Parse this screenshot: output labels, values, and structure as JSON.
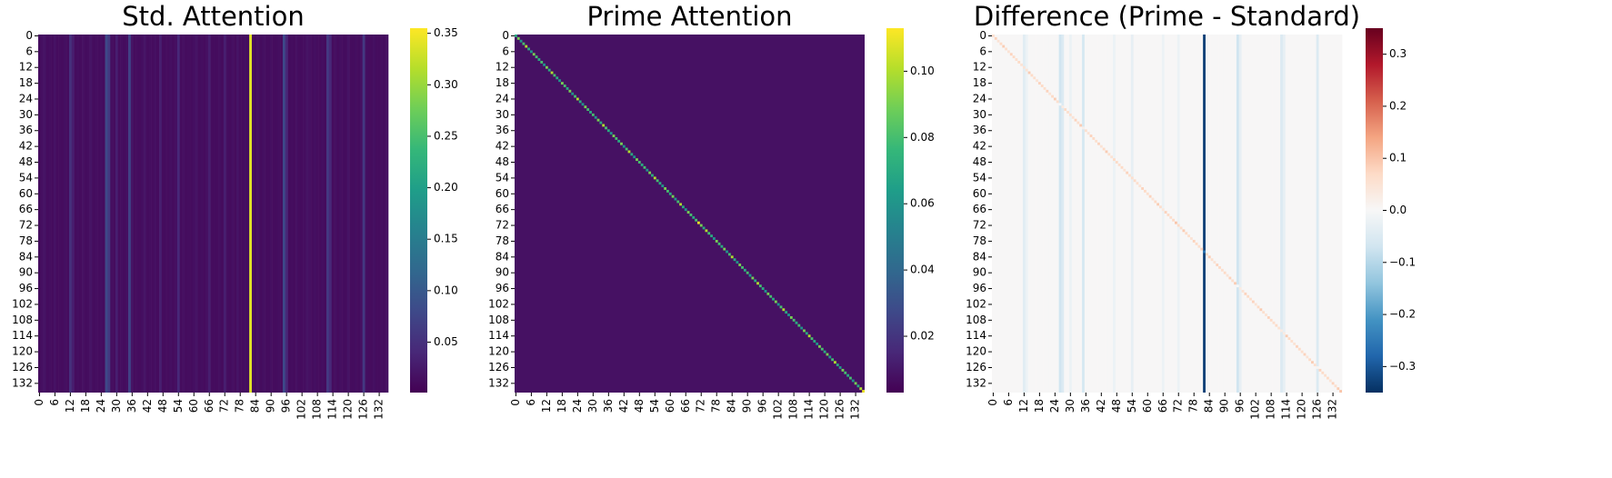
{
  "chart_data": [
    {
      "type": "heatmap",
      "title": "Std. Attention",
      "xticks": [
        0,
        6,
        12,
        18,
        24,
        30,
        36,
        42,
        48,
        54,
        60,
        66,
        72,
        78,
        84,
        90,
        96,
        102,
        108,
        114,
        120,
        126,
        132
      ],
      "yticks": [
        0,
        6,
        12,
        18,
        24,
        30,
        36,
        42,
        48,
        54,
        60,
        66,
        72,
        78,
        84,
        90,
        96,
        102,
        108,
        114,
        120,
        126,
        132
      ],
      "column_values": [
        0.012,
        0.015,
        0.02,
        0.012,
        0.014,
        0.012,
        0.018,
        0.012,
        0.013,
        0.012,
        0.015,
        0.012,
        0.05,
        0.03,
        0.012,
        0.014,
        0.012,
        0.016,
        0.012,
        0.013,
        0.02,
        0.012,
        0.014,
        0.012,
        0.015,
        0.012,
        0.08,
        0.06,
        0.014,
        0.012,
        0.03,
        0.012,
        0.014,
        0.012,
        0.015,
        0.07,
        0.02,
        0.012,
        0.013,
        0.012,
        0.015,
        0.02,
        0.012,
        0.014,
        0.012,
        0.016,
        0.012,
        0.03,
        0.012,
        0.013,
        0.012,
        0.015,
        0.012,
        0.014,
        0.04,
        0.012,
        0.016,
        0.012,
        0.013,
        0.012,
        0.015,
        0.02,
        0.012,
        0.014,
        0.012,
        0.016,
        0.03,
        0.012,
        0.013,
        0.012,
        0.015,
        0.012,
        0.03,
        0.014,
        0.012,
        0.016,
        0.012,
        0.02,
        0.013,
        0.012,
        0.015,
        0.012,
        0.34,
        0.014,
        0.012,
        0.016,
        0.012,
        0.015,
        0.013,
        0.012,
        0.015,
        0.012,
        0.012,
        0.014,
        0.012,
        0.08,
        0.04,
        0.012,
        0.013,
        0.012,
        0.015,
        0.012,
        0.012,
        0.014,
        0.02,
        0.016,
        0.012,
        0.015,
        0.013,
        0.012,
        0.015,
        0.012,
        0.06,
        0.04,
        0.012,
        0.016,
        0.012,
        0.015,
        0.013,
        0.012,
        0.02,
        0.012,
        0.012,
        0.014,
        0.012,
        0.016,
        0.06,
        0.015,
        0.013,
        0.012,
        0.015,
        0.012,
        0.012,
        0.014,
        0.012,
        0.016
      ],
      "clim": [
        0.001,
        0.355
      ],
      "cticks": [
        0.05,
        {
          "value": 0.1,
          "label": "0.10"
        },
        0.15,
        {
          "value": 0.2,
          "label": "0.20"
        },
        0.25,
        {
          "value": 0.3,
          "label": "0.30"
        },
        0.35
      ],
      "colormap": [
        "#440154",
        "#482878",
        "#3e4989",
        "#31688e",
        "#26828e",
        "#1f9e89",
        "#35b779",
        "#6ece58",
        "#b5de2b",
        "#fde725"
      ]
    },
    {
      "type": "heatmap",
      "title": "Prime Attention",
      "xticks": [
        0,
        6,
        12,
        18,
        24,
        30,
        36,
        42,
        48,
        54,
        60,
        66,
        72,
        78,
        84,
        90,
        96,
        102,
        108,
        114,
        120,
        126,
        132
      ],
      "yticks": [
        0,
        6,
        12,
        18,
        24,
        30,
        36,
        42,
        48,
        54,
        60,
        66,
        72,
        78,
        84,
        90,
        96,
        102,
        108,
        114,
        120,
        126,
        132
      ],
      "background": 0.008,
      "diagonal_values": [
        0.07,
        0.09,
        0.06,
        0.08,
        0.1,
        0.07,
        0.06,
        0.09,
        0.08,
        0.07,
        0.08,
        0.06,
        0.09,
        0.07,
        0.1,
        0.08,
        0.07,
        0.06,
        0.09,
        0.08,
        0.07,
        0.09,
        0.06,
        0.08,
        0.1,
        0.07,
        0.06,
        0.09,
        0.08,
        0.07,
        0.08,
        0.06,
        0.09,
        0.07,
        0.1,
        0.08,
        0.07,
        0.06,
        0.09,
        0.08,
        0.07,
        0.09,
        0.06,
        0.08,
        0.1,
        0.07,
        0.06,
        0.09,
        0.08,
        0.07,
        0.08,
        0.06,
        0.09,
        0.07,
        0.1,
        0.08,
        0.07,
        0.06,
        0.09,
        0.08,
        0.07,
        0.09,
        0.06,
        0.08,
        0.1,
        0.07,
        0.06,
        0.09,
        0.08,
        0.07,
        0.08,
        0.11,
        0.09,
        0.07,
        0.1,
        0.08,
        0.07,
        0.06,
        0.09,
        0.08,
        0.07,
        0.09,
        0.06,
        0.08,
        0.1,
        0.07,
        0.06,
        0.09,
        0.08,
        0.07,
        0.08,
        0.06,
        0.09,
        0.07,
        0.1,
        0.08,
        0.07,
        0.06,
        0.09,
        0.08,
        0.07,
        0.09,
        0.06,
        0.08,
        0.1,
        0.07,
        0.06,
        0.09,
        0.08,
        0.07,
        0.08,
        0.06,
        0.09,
        0.07,
        0.1,
        0.08,
        0.07,
        0.06,
        0.09,
        0.08,
        0.07,
        0.09,
        0.06,
        0.08,
        0.1,
        0.07,
        0.06,
        0.09,
        0.08,
        0.07,
        0.08,
        0.06,
        0.09,
        0.07,
        0.1,
        0.11
      ],
      "clim": [
        0.003,
        0.113
      ],
      "cticks": [
        0.02,
        0.04,
        0.06,
        0.08,
        {
          "value": 0.1,
          "label": "0.10"
        }
      ],
      "colormap": [
        "#440154",
        "#482878",
        "#3e4989",
        "#31688e",
        "#26828e",
        "#1f9e89",
        "#35b779",
        "#6ece58",
        "#b5de2b",
        "#fde725"
      ]
    },
    {
      "type": "heatmap",
      "title": "Difference (Prime - Standard)",
      "xticks": [
        0,
        6,
        12,
        18,
        24,
        30,
        36,
        42,
        48,
        54,
        60,
        66,
        72,
        78,
        84,
        90,
        96,
        102,
        108,
        114,
        120,
        126,
        132
      ],
      "yticks": [
        0,
        6,
        12,
        18,
        24,
        30,
        36,
        42,
        48,
        54,
        60,
        66,
        72,
        78,
        84,
        90,
        96,
        102,
        108,
        114,
        120,
        126,
        132
      ],
      "column_values": [
        0.002,
        0.002,
        0.002,
        0.002,
        0.002,
        0.002,
        0.002,
        0.002,
        0.002,
        0.002,
        0.002,
        0.002,
        -0.04,
        -0.02,
        0.002,
        0.002,
        0.002,
        0.002,
        0.002,
        0.002,
        0.002,
        0.002,
        0.002,
        0.002,
        0.002,
        0.002,
        -0.07,
        -0.05,
        0.002,
        0.002,
        -0.02,
        0.002,
        0.002,
        0.002,
        0.002,
        -0.06,
        0.002,
        0.002,
        0.002,
        0.002,
        0.002,
        0.002,
        0.002,
        0.002,
        0.002,
        0.002,
        0.002,
        -0.02,
        0.002,
        0.002,
        0.002,
        0.002,
        0.002,
        0.002,
        -0.03,
        0.002,
        0.002,
        0.002,
        0.002,
        0.002,
        0.002,
        0.002,
        0.002,
        0.002,
        0.002,
        0.002,
        -0.02,
        0.002,
        0.002,
        0.002,
        0.002,
        0.002,
        -0.02,
        0.002,
        0.002,
        0.002,
        0.002,
        0.002,
        0.002,
        0.002,
        0.002,
        0.002,
        -0.33,
        0.002,
        0.002,
        0.002,
        0.002,
        0.002,
        0.002,
        0.002,
        0.002,
        0.002,
        0.002,
        0.002,
        0.002,
        -0.07,
        -0.03,
        0.002,
        0.002,
        0.002,
        0.002,
        0.002,
        0.002,
        0.002,
        0.002,
        0.002,
        0.002,
        0.002,
        0.002,
        0.002,
        0.002,
        0.002,
        -0.05,
        -0.03,
        0.002,
        0.002,
        0.002,
        0.002,
        0.002,
        0.002,
        0.002,
        0.002,
        0.002,
        0.002,
        0.002,
        0.002,
        -0.05,
        0.002,
        0.002,
        0.002,
        0.002,
        0.002,
        0.002,
        0.002,
        0.002,
        0.002
      ],
      "diagonal_values": [
        0.06,
        0.08,
        0.05,
        0.07,
        0.09,
        0.06,
        0.05,
        0.08,
        0.07,
        0.06,
        0.07,
        0.05,
        0.05,
        0.05,
        0.09,
        0.07,
        0.06,
        0.05,
        0.08,
        0.07,
        0.06,
        0.08,
        0.05,
        0.07,
        0.09,
        0.06,
        0.0,
        0.03,
        0.07,
        0.06,
        0.06,
        0.05,
        0.08,
        0.06,
        0.09,
        0.02,
        0.06,
        0.05,
        0.08,
        0.07,
        0.06,
        0.08,
        0.05,
        0.07,
        0.09,
        0.06,
        0.05,
        0.07,
        0.07,
        0.06,
        0.07,
        0.05,
        0.08,
        0.06,
        0.06,
        0.07,
        0.06,
        0.05,
        0.08,
        0.07,
        0.06,
        0.08,
        0.05,
        0.07,
        0.09,
        0.06,
        0.04,
        0.08,
        0.07,
        0.06,
        0.07,
        0.1,
        0.07,
        0.06,
        0.09,
        0.07,
        0.06,
        0.05,
        0.08,
        0.07,
        0.06,
        0.08,
        -0.25,
        0.07,
        0.09,
        0.06,
        0.05,
        0.08,
        0.07,
        0.06,
        0.07,
        0.05,
        0.08,
        0.06,
        0.09,
        0.0,
        0.03,
        0.05,
        0.08,
        0.07,
        0.06,
        0.08,
        0.05,
        0.07,
        0.09,
        0.06,
        0.05,
        0.08,
        0.07,
        0.06,
        0.07,
        0.05,
        0.03,
        0.03,
        0.09,
        0.07,
        0.06,
        0.05,
        0.08,
        0.07,
        0.06,
        0.08,
        0.05,
        0.07,
        0.09,
        0.06,
        0.01,
        0.08,
        0.07,
        0.06,
        0.07,
        0.05,
        0.08,
        0.06,
        0.09,
        0.1
      ],
      "clim": [
        -0.35,
        0.35
      ],
      "cticks": [
        {
          "value": -0.3,
          "label": "−0.3"
        },
        {
          "value": -0.2,
          "label": "−0.2"
        },
        {
          "value": -0.1,
          "label": "−0.1"
        },
        {
          "value": 0,
          "label": "0.0"
        },
        0.1,
        0.2,
        0.3
      ],
      "colormap": [
        "#053061",
        "#2166ac",
        "#4393c3",
        "#92c5de",
        "#d1e5f0",
        "#f7f7f7",
        "#fddbc7",
        "#f4a582",
        "#d6604d",
        "#b2182b",
        "#67001f"
      ]
    }
  ]
}
